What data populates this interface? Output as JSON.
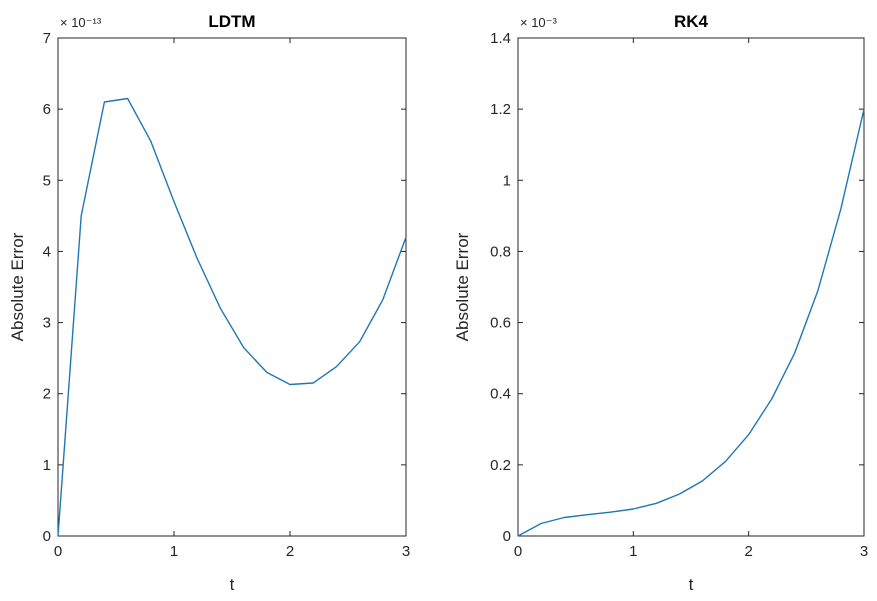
{
  "chart_data": [
    {
      "type": "line",
      "title": "LDTM",
      "xlabel": "t",
      "ylabel": "Absolute Error",
      "y_exponent_label": "× 10⁻¹³",
      "xlim": [
        0,
        3
      ],
      "ylim": [
        0,
        7
      ],
      "x_ticks": [
        "0",
        "1",
        "2",
        "3"
      ],
      "y_ticks": [
        "0",
        "1",
        "2",
        "3",
        "4",
        "5",
        "6",
        "7"
      ],
      "grid": false,
      "color": "#1f77b4",
      "series": [
        {
          "x": [
            0,
            0.2,
            0.4,
            0.6,
            0.8,
            1.0,
            1.2,
            1.4,
            1.6,
            1.8,
            2.0,
            2.2,
            2.4,
            2.6,
            2.8,
            3.0
          ],
          "y": [
            0,
            4.5,
            6.1,
            6.15,
            5.55,
            4.7,
            3.9,
            3.2,
            2.65,
            2.3,
            2.13,
            2.15,
            2.38,
            2.73,
            3.32,
            4.2
          ]
        }
      ]
    },
    {
      "type": "line",
      "title": "RK4",
      "xlabel": "t",
      "ylabel": "Absolute Error",
      "y_exponent_label": "× 10⁻³",
      "xlim": [
        0,
        3
      ],
      "ylim": [
        0,
        1.4
      ],
      "x_ticks": [
        "0",
        "1",
        "2",
        "3"
      ],
      "y_ticks": [
        "0",
        "0.2",
        "0.4",
        "0.6",
        "0.8",
        "1",
        "1.2",
        "1.4"
      ],
      "grid": false,
      "color": "#1f77b4",
      "series": [
        {
          "x": [
            0,
            0.2,
            0.4,
            0.6,
            0.8,
            1.0,
            1.2,
            1.4,
            1.6,
            1.8,
            2.0,
            2.2,
            2.4,
            2.6,
            2.8,
            3.0
          ],
          "y": [
            0,
            0.035,
            0.052,
            0.06,
            0.067,
            0.076,
            0.092,
            0.118,
            0.155,
            0.21,
            0.285,
            0.385,
            0.515,
            0.69,
            0.92,
            1.2
          ]
        }
      ]
    }
  ]
}
